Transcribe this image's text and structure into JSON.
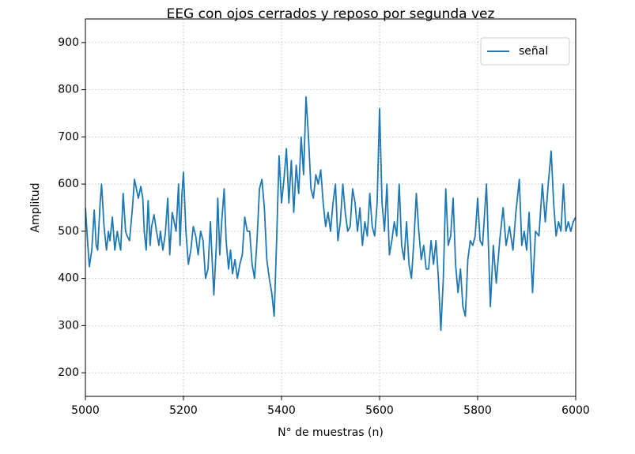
{
  "chart_data": {
    "type": "line",
    "title": "EEG con ojos cerrados y reposo por segunda vez",
    "xlabel": "N° de muestras (n)",
    "ylabel": "Amplitud",
    "x": [
      5000,
      5005,
      5008,
      5013,
      5018,
      5022,
      5025,
      5030,
      5033,
      5038,
      5043,
      5047,
      5050,
      5055,
      5060,
      5065,
      5068,
      5072,
      5077,
      5082,
      5085,
      5090,
      5096,
      5100,
      5104,
      5108,
      5113,
      5117,
      5120,
      5124,
      5128,
      5132,
      5135,
      5140,
      5145,
      5150,
      5153,
      5158,
      5163,
      5168,
      5172,
      5177,
      5185,
      5190,
      5193,
      5197,
      5200,
      5205,
      5210,
      5215,
      5220,
      5225,
      5230,
      5235,
      5240,
      5245,
      5250,
      5255,
      5258,
      5262,
      5267,
      5270,
      5274,
      5278,
      5283,
      5287,
      5292,
      5296,
      5300,
      5305,
      5310,
      5315,
      5320,
      5325,
      5330,
      5335,
      5340,
      5345,
      5350,
      5355,
      5360,
      5365,
      5370,
      5375,
      5380,
      5385,
      5390,
      5395,
      5400,
      5405,
      5410,
      5415,
      5420,
      5425,
      5430,
      5435,
      5440,
      5445,
      5450,
      5455,
      5460,
      5465,
      5470,
      5475,
      5480,
      5485,
      5490,
      5495,
      5500,
      5505,
      5510,
      5515,
      5520,
      5525,
      5530,
      5535,
      5540,
      5545,
      5550,
      5555,
      5560,
      5565,
      5570,
      5575,
      5580,
      5585,
      5590,
      5595,
      5600,
      5605,
      5610,
      5615,
      5620,
      5625,
      5630,
      5635,
      5640,
      5645,
      5650,
      5655,
      5660,
      5665,
      5670,
      5675,
      5680,
      5685,
      5690,
      5695,
      5700,
      5705,
      5710,
      5715,
      5720,
      5725,
      5730,
      5735,
      5740,
      5745,
      5750,
      5755,
      5760,
      5765,
      5770,
      5775,
      5780,
      5785,
      5790,
      5795,
      5800,
      5805,
      5810,
      5818,
      5826,
      5832,
      5838,
      5845,
      5852,
      5858,
      5865,
      5872,
      5878,
      5885,
      5890,
      5895,
      5900,
      5905,
      5912,
      5918,
      5925,
      5932,
      5938,
      5944,
      5950,
      5955,
      5960,
      5965,
      5970,
      5975,
      5980,
      5985,
      5990,
      5995,
      6000
    ],
    "series": [
      {
        "name": "señal",
        "color": "#1f77b4",
        "values": [
          550,
          470,
          425,
          460,
          545,
          470,
          460,
          560,
          600,
          510,
          460,
          500,
          480,
          530,
          460,
          500,
          480,
          460,
          580,
          500,
          490,
          480,
          550,
          610,
          590,
          570,
          595,
          570,
          500,
          460,
          565,
          470,
          510,
          535,
          500,
          470,
          500,
          460,
          495,
          570,
          450,
          540,
          500,
          600,
          470,
          580,
          625,
          500,
          430,
          460,
          510,
          490,
          450,
          500,
          480,
          400,
          420,
          520,
          450,
          365,
          470,
          570,
          450,
          520,
          590,
          480,
          420,
          460,
          410,
          440,
          400,
          430,
          450,
          530,
          500,
          500,
          430,
          400,
          480,
          590,
          610,
          550,
          440,
          400,
          370,
          320,
          480,
          660,
          560,
          610,
          675,
          560,
          650,
          540,
          640,
          580,
          700,
          620,
          785,
          700,
          590,
          570,
          620,
          600,
          630,
          560,
          510,
          540,
          500,
          560,
          600,
          480,
          520,
          600,
          540,
          500,
          510,
          590,
          560,
          500,
          550,
          470,
          520,
          490,
          580,
          510,
          490,
          560,
          760,
          560,
          500,
          600,
          450,
          480,
          520,
          490,
          600,
          470,
          440,
          520,
          430,
          400,
          480,
          580,
          500,
          440,
          470,
          420,
          420,
          480,
          430,
          480,
          400,
          290,
          400,
          590,
          470,
          490,
          570,
          430,
          370,
          420,
          340,
          320,
          440,
          480,
          470,
          490,
          570,
          480,
          470,
          600,
          340,
          470,
          390,
          480,
          550,
          470,
          510,
          460,
          540,
          610,
          470,
          500,
          460,
          540,
          370,
          500,
          490,
          600,
          520,
          600,
          670,
          560,
          490,
          520,
          500,
          600,
          500,
          520,
          500,
          520,
          530
        ]
      }
    ],
    "xlim": [
      5000,
      6000
    ],
    "ylim": [
      150,
      950
    ],
    "xticks": [
      5000,
      5200,
      5400,
      5600,
      5800,
      6000
    ],
    "yticks": [
      200,
      300,
      400,
      500,
      600,
      700,
      800,
      900
    ],
    "grid": true,
    "legend": "upper right"
  }
}
